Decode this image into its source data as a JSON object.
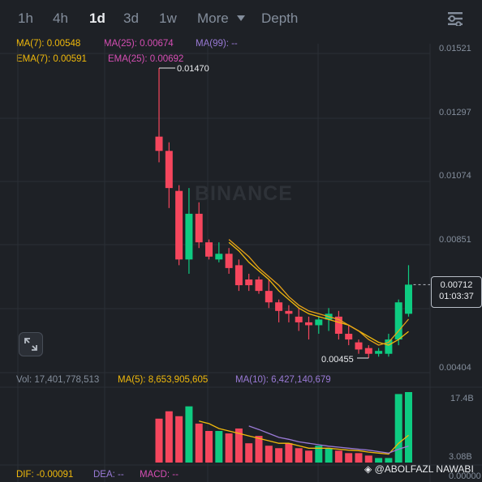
{
  "tabs": [
    {
      "label": "1h",
      "active": false
    },
    {
      "label": "4h",
      "active": false
    },
    {
      "label": "1d",
      "active": true
    },
    {
      "label": "3d",
      "active": false
    },
    {
      "label": "1w",
      "active": false
    },
    {
      "label": "More",
      "active": false
    },
    {
      "label": "Depth",
      "active": false
    }
  ],
  "indicators": {
    "ma7": "MA(7): 0.00548",
    "ma25": "MA(25): 0.00674",
    "ma99": "MA(99): --",
    "ema7": "EMA(7): 0.00591",
    "ema25": "EMA(25): 0.00692"
  },
  "price_axis": [
    "0.01521",
    "0.01297",
    "0.01074",
    "0.00851",
    "0.00404"
  ],
  "high_label": "0.01470",
  "low_label": "0.00455",
  "current_price": "0.00712",
  "countdown": "01:03:37",
  "watermark": "BINANCE",
  "volume": {
    "vol": "Vol: 17,401,778,513",
    "ma5": "MA(5): 8,653,905,605",
    "ma10": "MA(10): 6,427,140,679",
    "axis_top": "17.4B",
    "axis_bottom": "3.08B"
  },
  "macd": {
    "dif": "DIF: -0.00091",
    "dea": "DEA: --",
    "macd": "MACD: --",
    "axis": "0.00000"
  },
  "credit": "@ABOLFAZL NAWABI",
  "colors": {
    "up": "#0ecb81",
    "down": "#f6465d",
    "ma": "#f0b90b",
    "ma10": "#9a7ad6",
    "bg": "#1e2126"
  },
  "chart_data": {
    "type": "candlestick",
    "ylim": [
      0.00404,
      0.01521
    ],
    "candles": [
      {
        "o": 0.0123,
        "h": 0.0147,
        "l": 0.0114,
        "c": 0.0118
      },
      {
        "o": 0.0118,
        "h": 0.0121,
        "l": 0.0098,
        "c": 0.0105
      },
      {
        "o": 0.0104,
        "h": 0.0106,
        "l": 0.0078,
        "c": 0.008
      },
      {
        "o": 0.008,
        "h": 0.0105,
        "l": 0.0075,
        "c": 0.0096
      },
      {
        "o": 0.0096,
        "h": 0.01,
        "l": 0.0084,
        "c": 0.0086
      },
      {
        "o": 0.0086,
        "h": 0.0087,
        "l": 0.008,
        "c": 0.0081
      },
      {
        "o": 0.008,
        "h": 0.0086,
        "l": 0.0079,
        "c": 0.0082
      },
      {
        "o": 0.0082,
        "h": 0.0084,
        "l": 0.0075,
        "c": 0.0077
      },
      {
        "o": 0.0078,
        "h": 0.008,
        "l": 0.0069,
        "c": 0.0071
      },
      {
        "o": 0.0073,
        "h": 0.0075,
        "l": 0.0069,
        "c": 0.0071
      },
      {
        "o": 0.0073,
        "h": 0.0074,
        "l": 0.0068,
        "c": 0.0069
      },
      {
        "o": 0.0069,
        "h": 0.0073,
        "l": 0.0063,
        "c": 0.0065
      },
      {
        "o": 0.0065,
        "h": 0.0066,
        "l": 0.0058,
        "c": 0.0062
      },
      {
        "o": 0.0062,
        "h": 0.0064,
        "l": 0.0058,
        "c": 0.0061
      },
      {
        "o": 0.006,
        "h": 0.0063,
        "l": 0.0055,
        "c": 0.0058
      },
      {
        "o": 0.0058,
        "h": 0.006,
        "l": 0.0052,
        "c": 0.0057
      },
      {
        "o": 0.0057,
        "h": 0.006,
        "l": 0.0054,
        "c": 0.0059
      },
      {
        "o": 0.0059,
        "h": 0.0063,
        "l": 0.0055,
        "c": 0.0061
      },
      {
        "o": 0.006,
        "h": 0.0062,
        "l": 0.0052,
        "c": 0.0054
      },
      {
        "o": 0.0054,
        "h": 0.0057,
        "l": 0.005,
        "c": 0.0052
      },
      {
        "o": 0.0051,
        "h": 0.0052,
        "l": 0.0047,
        "c": 0.00485
      },
      {
        "o": 0.0049,
        "h": 0.005,
        "l": 0.00455,
        "c": 0.0047
      },
      {
        "o": 0.0047,
        "h": 0.0049,
        "l": 0.0046,
        "c": 0.0048
      },
      {
        "o": 0.0047,
        "h": 0.0054,
        "l": 0.0046,
        "c": 0.0052
      },
      {
        "o": 0.0052,
        "h": 0.0066,
        "l": 0.005,
        "c": 0.0065
      },
      {
        "o": 0.0061,
        "h": 0.0078,
        "l": 0.006,
        "c": 0.00712
      }
    ],
    "ma_line": [
      null,
      null,
      null,
      null,
      null,
      null,
      null,
      0.0086,
      0.0083,
      0.0079,
      0.0076,
      0.0073,
      0.0069,
      0.0066,
      0.0063,
      0.0061,
      0.006,
      0.0059,
      0.0058,
      0.0057,
      0.0055,
      0.0053,
      0.0051,
      0.005,
      0.0052,
      0.00548
    ],
    "ema_line": [
      null,
      null,
      null,
      null,
      null,
      null,
      null,
      0.0087,
      0.0084,
      0.0081,
      0.0077,
      0.0074,
      0.0071,
      0.0067,
      0.0064,
      0.0062,
      0.0061,
      0.006,
      0.0059,
      0.0057,
      0.0055,
      0.0052,
      0.005,
      0.0051,
      0.0055,
      0.00591
    ],
    "volume": [
      12.0,
      13.5,
      12.5,
      14.5,
      11.0,
      9.5,
      9.5,
      9.0,
      10.0,
      7.0,
      8.5,
      6.5,
      6.0,
      7.0,
      6.0,
      5.5,
      6.5,
      6.0,
      5.5,
      5.0,
      5.0,
      4.5,
      4.0,
      4.0,
      17.0,
      17.4
    ],
    "volume_ylim": [
      3.08,
      17.4
    ],
    "volume_ma5": [
      null,
      null,
      null,
      null,
      11.5,
      11.0,
      10.0,
      9.5,
      9.0,
      8.5,
      8.0,
      7.5,
      7.0,
      7.0,
      6.5,
      6.0,
      6.0,
      6.0,
      5.8,
      5.6,
      5.5,
      5.2,
      5.0,
      4.8,
      7.0,
      8.65
    ],
    "volume_ma10": [
      null,
      null,
      null,
      null,
      null,
      null,
      null,
      null,
      null,
      10.5,
      9.8,
      9.0,
      8.2,
      7.8,
      7.3,
      7.0,
      6.7,
      6.4,
      6.2,
      6.0,
      5.8,
      5.6,
      5.3,
      5.0,
      5.8,
      6.43
    ]
  }
}
